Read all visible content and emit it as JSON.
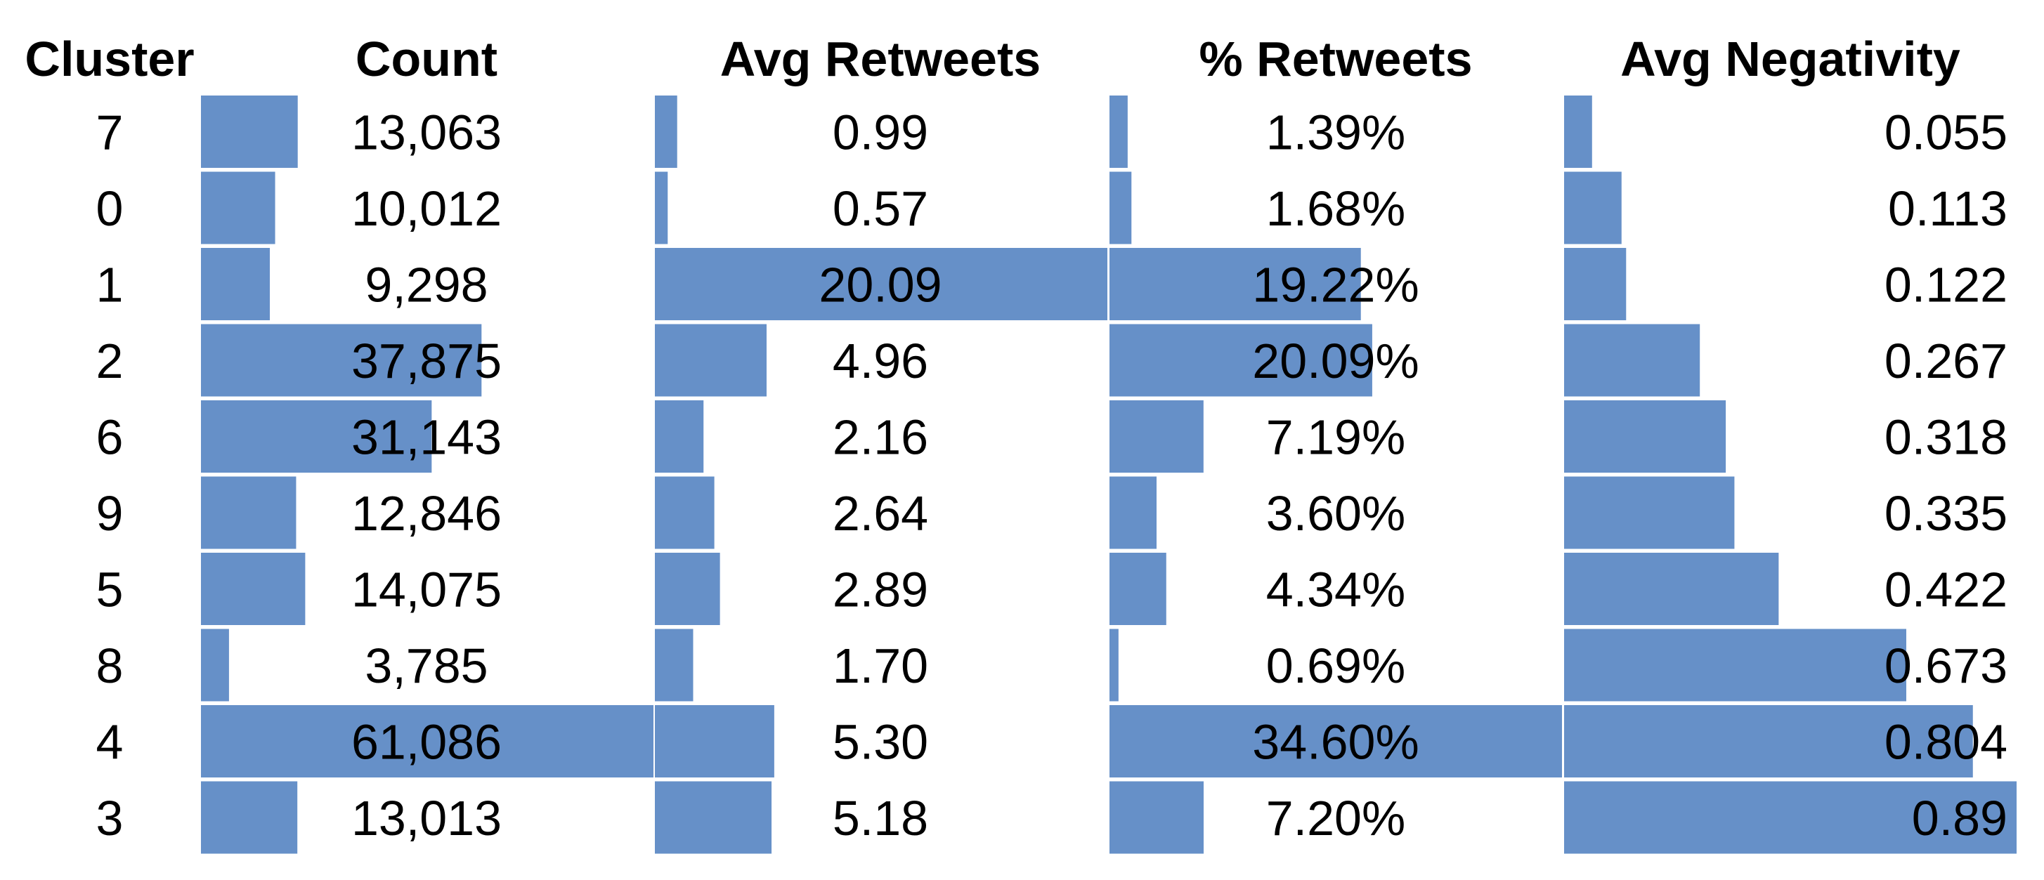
{
  "chart_data": {
    "type": "table",
    "columns": [
      "Cluster",
      "Count",
      "Avg Retweets",
      "% Retweets",
      "Avg Negativity"
    ],
    "bar_color": "#6690c8",
    "rows": [
      {
        "cluster": "7",
        "count": 13063,
        "count_label": "13,063",
        "avg_retweets": 0.99,
        "avg_retweets_label": "0.99",
        "pct_retweets": 1.39,
        "pct_retweets_label": "1.39%",
        "avg_negativity": 0.055,
        "avg_negativity_label": "0.055"
      },
      {
        "cluster": "0",
        "count": 10012,
        "count_label": "10,012",
        "avg_retweets": 0.57,
        "avg_retweets_label": "0.57",
        "pct_retweets": 1.68,
        "pct_retweets_label": "1.68%",
        "avg_negativity": 0.113,
        "avg_negativity_label": "0.113"
      },
      {
        "cluster": "1",
        "count": 9298,
        "count_label": "9,298",
        "avg_retweets": 20.09,
        "avg_retweets_label": "20.09",
        "pct_retweets": 19.22,
        "pct_retweets_label": "19.22%",
        "avg_negativity": 0.122,
        "avg_negativity_label": "0.122"
      },
      {
        "cluster": "2",
        "count": 37875,
        "count_label": "37,875",
        "avg_retweets": 4.96,
        "avg_retweets_label": "4.96",
        "pct_retweets": 20.09,
        "pct_retweets_label": "20.09%",
        "avg_negativity": 0.267,
        "avg_negativity_label": "0.267"
      },
      {
        "cluster": "6",
        "count": 31143,
        "count_label": "31,143",
        "avg_retweets": 2.16,
        "avg_retweets_label": "2.16",
        "pct_retweets": 7.19,
        "pct_retweets_label": "7.19%",
        "avg_negativity": 0.318,
        "avg_negativity_label": "0.318"
      },
      {
        "cluster": "9",
        "count": 12846,
        "count_label": "12,846",
        "avg_retweets": 2.64,
        "avg_retweets_label": "2.64",
        "pct_retweets": 3.6,
        "pct_retweets_label": "3.60%",
        "avg_negativity": 0.335,
        "avg_negativity_label": "0.335"
      },
      {
        "cluster": "5",
        "count": 14075,
        "count_label": "14,075",
        "avg_retweets": 2.89,
        "avg_retweets_label": "2.89",
        "pct_retweets": 4.34,
        "pct_retweets_label": "4.34%",
        "avg_negativity": 0.422,
        "avg_negativity_label": "0.422"
      },
      {
        "cluster": "8",
        "count": 3785,
        "count_label": "3,785",
        "avg_retweets": 1.7,
        "avg_retweets_label": "1.70",
        "pct_retweets": 0.69,
        "pct_retweets_label": "0.69%",
        "avg_negativity": 0.673,
        "avg_negativity_label": "0.673"
      },
      {
        "cluster": "4",
        "count": 61086,
        "count_label": "61,086",
        "avg_retweets": 5.3,
        "avg_retweets_label": "5.30",
        "pct_retweets": 34.6,
        "pct_retweets_label": "34.60%",
        "avg_negativity": 0.804,
        "avg_negativity_label": "0.804"
      },
      {
        "cluster": "3",
        "count": 13013,
        "count_label": "13,013",
        "avg_retweets": 5.18,
        "avg_retweets_label": "5.18",
        "pct_retweets": 7.2,
        "pct_retweets_label": "7.20%",
        "avg_negativity": 0.89,
        "avg_negativity_label": "0.89"
      }
    ]
  }
}
